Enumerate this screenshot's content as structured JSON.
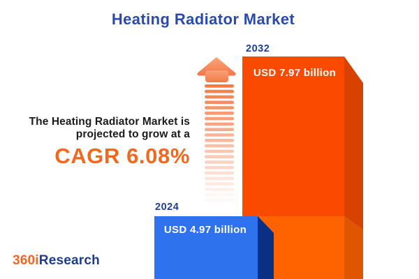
{
  "title": "Heating Radiator Market",
  "annotation": {
    "line1": "The Heating Radiator Market is",
    "line2": "projected to grow at a",
    "cagr": "CAGR 6.08%"
  },
  "logo": {
    "prefix": "360i",
    "suffix": "Research"
  },
  "chart_data": {
    "type": "bar",
    "title": "Heating Radiator Market",
    "categories": [
      "2024",
      "2032"
    ],
    "values": [
      4.97,
      7.97
    ],
    "unit": "USD billion",
    "bar_labels": [
      "USD 4.97 billion",
      "USD 7.97 billion"
    ],
    "cagr_percent": 6.08,
    "legend": "none",
    "grid": "off",
    "style": "3d-isometric-bars",
    "colors": {
      "bar_2024_face": "#2f72ed",
      "bar_2024_side": "#0a3086",
      "bar_2032_face": "#fa4a00",
      "bar_2032_face_lower": "#ff6300",
      "bar_2032_side": "#d84200",
      "bar_2032_side_lower": "#e05600",
      "year_label": "#203e92",
      "bar_value_text": "#ffffff",
      "title_blue": "#2b4aad",
      "cagr_orange": "#f2681c",
      "arrow_orange": "#f27b48",
      "logo_orange": "#f26522",
      "logo_blue": "#1e3c8f"
    }
  }
}
